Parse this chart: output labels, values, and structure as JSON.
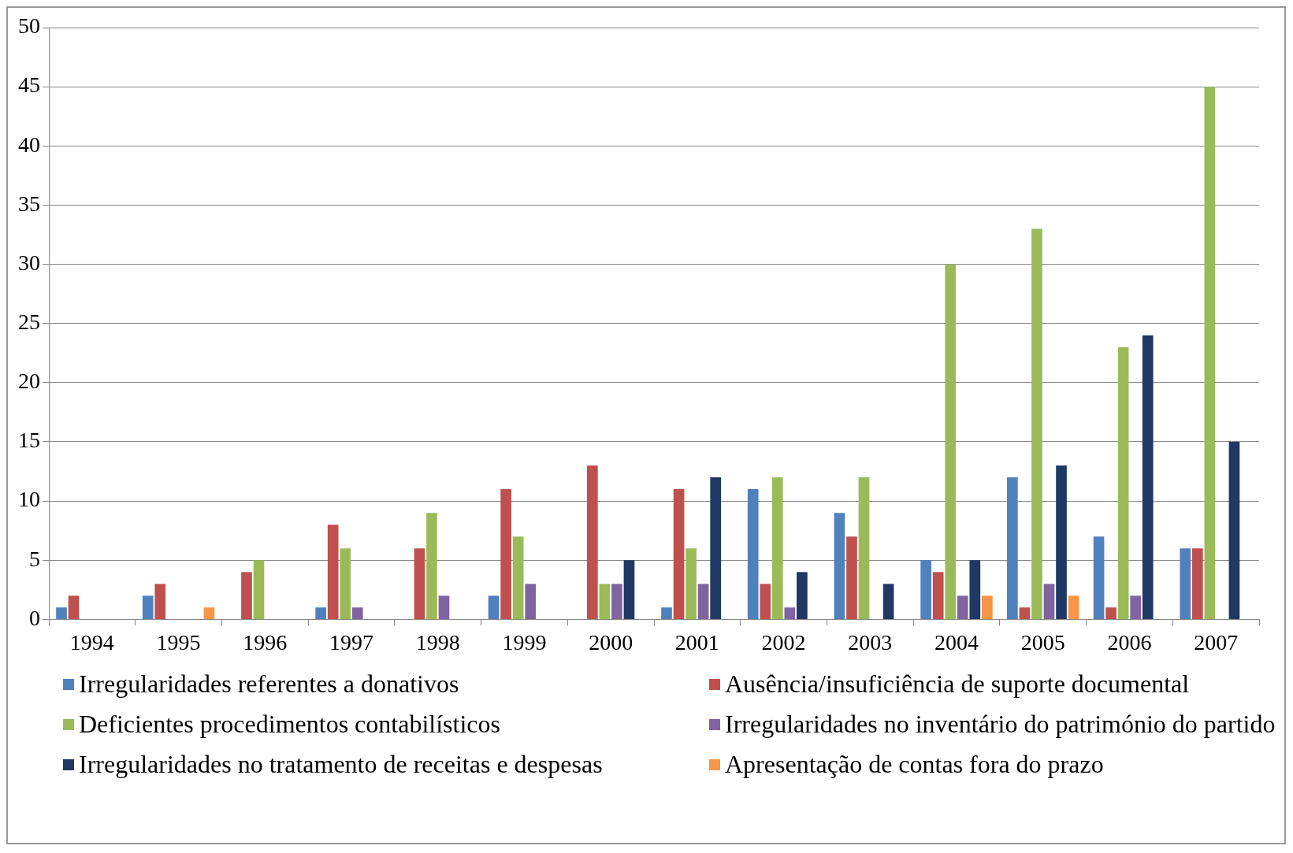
{
  "chart_data": {
    "type": "bar",
    "categories": [
      "1994",
      "1995",
      "1996",
      "1997",
      "1998",
      "1999",
      "2000",
      "2001",
      "2002",
      "2003",
      "2004",
      "2005",
      "2006",
      "2007"
    ],
    "series": [
      {
        "name": "Irregularidades referentes a donativos",
        "color": "#4f81bd",
        "values": [
          1,
          2,
          null,
          1,
          null,
          2,
          null,
          1,
          11,
          9,
          5,
          12,
          7,
          6
        ]
      },
      {
        "name": "Ausência/insuficiência de suporte documental",
        "color": "#c0504d",
        "values": [
          2,
          3,
          4,
          8,
          6,
          11,
          13,
          11,
          3,
          7,
          4,
          1,
          1,
          6
        ]
      },
      {
        "name": "Deficientes procedimentos contabilísticos",
        "color": "#9bbb59",
        "values": [
          null,
          null,
          5,
          6,
          9,
          7,
          3,
          6,
          12,
          12,
          30,
          33,
          23,
          45
        ]
      },
      {
        "name": "Irregularidades no inventário do património do partido",
        "color": "#8064a2",
        "values": [
          null,
          null,
          null,
          1,
          2,
          3,
          3,
          3,
          1,
          null,
          2,
          3,
          2,
          null
        ]
      },
      {
        "name": "Irregularidades no tratamento de receitas e despesas",
        "color": "#1f3864",
        "values": [
          null,
          null,
          null,
          null,
          null,
          null,
          5,
          12,
          4,
          3,
          5,
          13,
          24,
          15
        ]
      },
      {
        "name": "Apresentação de contas fora do prazo",
        "color": "#f79646",
        "values": [
          null,
          1,
          null,
          null,
          null,
          null,
          null,
          null,
          null,
          null,
          2,
          2,
          null,
          null
        ]
      }
    ],
    "ylim": [
      0,
      50
    ],
    "yticks": [
      0,
      5,
      10,
      15,
      20,
      25,
      30,
      35,
      40,
      45,
      50
    ],
    "grid": "y",
    "legend": "bottom"
  }
}
